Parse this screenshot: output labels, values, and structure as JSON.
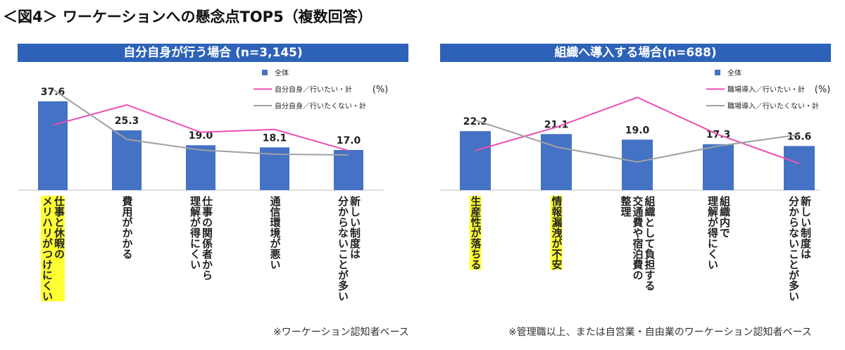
{
  "title": "＜図4＞ ワーケーションへの懸念点TOP5（複数回答）",
  "chart_data": [
    {
      "type": "bar",
      "title": "自分自身が行う場合 (n=3,145)",
      "categories": [
        "仕事と休暇の\nメリハリがつけにくい",
        "費用がかかる",
        "仕事の関係者から\n理解が得にくい",
        "通信環境が悪い",
        "新しい制度は\n分からないことが多い"
      ],
      "highlighted": [
        true,
        false,
        false,
        false,
        false
      ],
      "highlight_color": "#ffff33",
      "ylim": [
        0,
        45
      ],
      "unit_note": "(%)",
      "footnote": "※ワーケーション認知者ベース",
      "series": [
        {
          "name": "全体",
          "kind": "bar",
          "color": "#4472c4",
          "values": [
            37.6,
            25.3,
            19.0,
            18.1,
            17.0
          ],
          "value_labels": [
            "37.6",
            "25.3",
            "19.0",
            "18.1",
            "17.0"
          ]
        },
        {
          "name": "自分自身／行いたい・計",
          "kind": "line",
          "color": "#ec4fb5",
          "values": [
            27.5,
            36.1,
            24.5,
            25.7,
            16.7
          ]
        },
        {
          "name": "自分自身／行いたくない・計",
          "kind": "line",
          "color": "#a0a0a0",
          "values": [
            42.7,
            21.5,
            17.0,
            15.2,
            14.9
          ]
        }
      ]
    },
    {
      "type": "bar",
      "title": "組織へ導入する場合(n=688)",
      "categories": [
        "生産性が落ちる",
        "情報漏洩が不安",
        "組織として負担する\n交通費や宿泊費の\n整理",
        "組織内で\n理解が得にくい",
        "新しい制度は\n分からないことが多い"
      ],
      "highlighted": [
        true,
        true,
        false,
        false,
        false
      ],
      "highlight_color": "#ffff33",
      "ylim": [
        0,
        40
      ],
      "unit_note": "(%)",
      "footnote": "※管理職以上、または自営業・自由業のワーケーション認知者ベース",
      "series": [
        {
          "name": "全体",
          "kind": "bar",
          "color": "#4472c4",
          "values": [
            22.2,
            21.1,
            19.0,
            17.3,
            16.6
          ],
          "value_labels": [
            "22.2",
            "21.1",
            "19.0",
            "17.3",
            "16.6"
          ]
        },
        {
          "name": "職場導入／行いたい・計",
          "kind": "line",
          "color": "#ec4fb5",
          "values": [
            14.9,
            23.7,
            34.9,
            20.9,
            10.0
          ]
        },
        {
          "name": "職場導入／行いたくない・計",
          "kind": "line",
          "color": "#a0a0a0",
          "values": [
            26.3,
            16.3,
            10.6,
            16.6,
            20.9
          ]
        }
      ]
    }
  ]
}
